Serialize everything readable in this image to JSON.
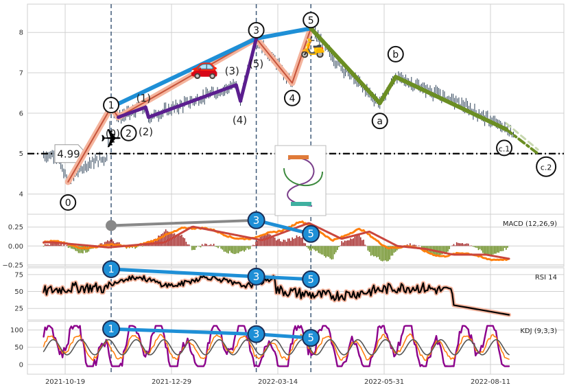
{
  "chart_data": {
    "type": "line",
    "panels": [
      {
        "name": "price",
        "ylim": [
          3.5,
          8.7
        ],
        "yticks": [
          4,
          5,
          6,
          7,
          8
        ],
        "reference_line": 5.0,
        "reference_label": "4.99",
        "elliott_waves": [
          {
            "label": "0",
            "x": "2021-10-21",
            "y": 4.3
          },
          {
            "label": "1",
            "x": "2021-11-20",
            "y": 6.15
          },
          {
            "label": "2",
            "x": "2021-11-25",
            "y": 5.9
          },
          {
            "label": "3",
            "x": "2022-03-01",
            "y": 7.85
          },
          {
            "label": "4",
            "x": "2022-03-26",
            "y": 6.75
          },
          {
            "label": "5",
            "x": "2022-04-08",
            "y": 8.1
          },
          {
            "label": "a",
            "x": "2022-05-26",
            "y": 6.25
          },
          {
            "label": "b",
            "x": "2022-06-06",
            "y": 6.9
          },
          {
            "label": "c.1",
            "x": "2022-08-22",
            "y": 5.6
          },
          {
            "label": "c.2",
            "x": "2022-09-13",
            "y": 5.0
          }
        ],
        "sub_waves": [
          {
            "label": "(0)",
            "x": "2021-11-24",
            "y": 5.75
          },
          {
            "label": "(1)",
            "x": "2021-12-14",
            "y": 6.15
          },
          {
            "label": "(2)",
            "x": "2021-12-16",
            "y": 5.9
          },
          {
            "label": "(3)",
            "x": "2022-02-15",
            "y": 6.7
          },
          {
            "label": "(4)",
            "x": "2022-02-18",
            "y": 6.3
          },
          {
            "label": "(5)",
            "x": "2022-03-01",
            "y": 7.85
          }
        ]
      },
      {
        "name": "macd",
        "label": "MACD (12,26,9)",
        "ylim": [
          -0.27,
          0.42
        ],
        "yticks": [
          -0.25,
          0,
          0.25
        ],
        "ytick_labels": [
          "−0.25",
          "0.00",
          "0.25"
        ],
        "divergence_points": [
          0.27,
          0.34,
          0.16
        ]
      },
      {
        "name": "rsi",
        "label": "RSI 14",
        "ylim": [
          8,
          85
        ],
        "yticks": [
          25,
          50,
          75
        ],
        "divergence_points": [
          83,
          72,
          68
        ]
      },
      {
        "name": "kdj",
        "label": "KDJ (9,3,3)",
        "ylim": [
          -28,
          125
        ],
        "yticks": [
          0,
          50,
          100
        ],
        "divergence_points": [
          103,
          88,
          77
        ]
      }
    ],
    "x_tick_labels": [
      "2021-10-19",
      "2021-12-29",
      "2022-03-14",
      "2022-05-31",
      "2022-08-11"
    ],
    "vertical_markers": [
      "2021-11-20",
      "2022-03-01",
      "2022-04-08"
    ],
    "colors": {
      "candle": "#2a3f55",
      "wave_main": "#f4b49d",
      "wave_main_dark": "#c6533a",
      "wave_trend": "#1e8fd6",
      "sub_wave": "#5b1e8f",
      "correction": "#6b8e23",
      "macd_line": "#ff7f0e",
      "signal_line": "#c9463d",
      "hist_pos": "#a52a2a",
      "hist_neg": "#6b8e23",
      "rsi_line": "#000000",
      "rsi_glow": "#f4b49d",
      "kdj_k": "#ff7f0e",
      "kdj_d": "#555555",
      "kdj_j": "#8b008b",
      "badge": "#1e8fd6",
      "grid": "#d0d0d0"
    },
    "icons": [
      "airplane-icon",
      "car-icon",
      "scooter-icon",
      "rollercoaster-icon"
    ]
  }
}
